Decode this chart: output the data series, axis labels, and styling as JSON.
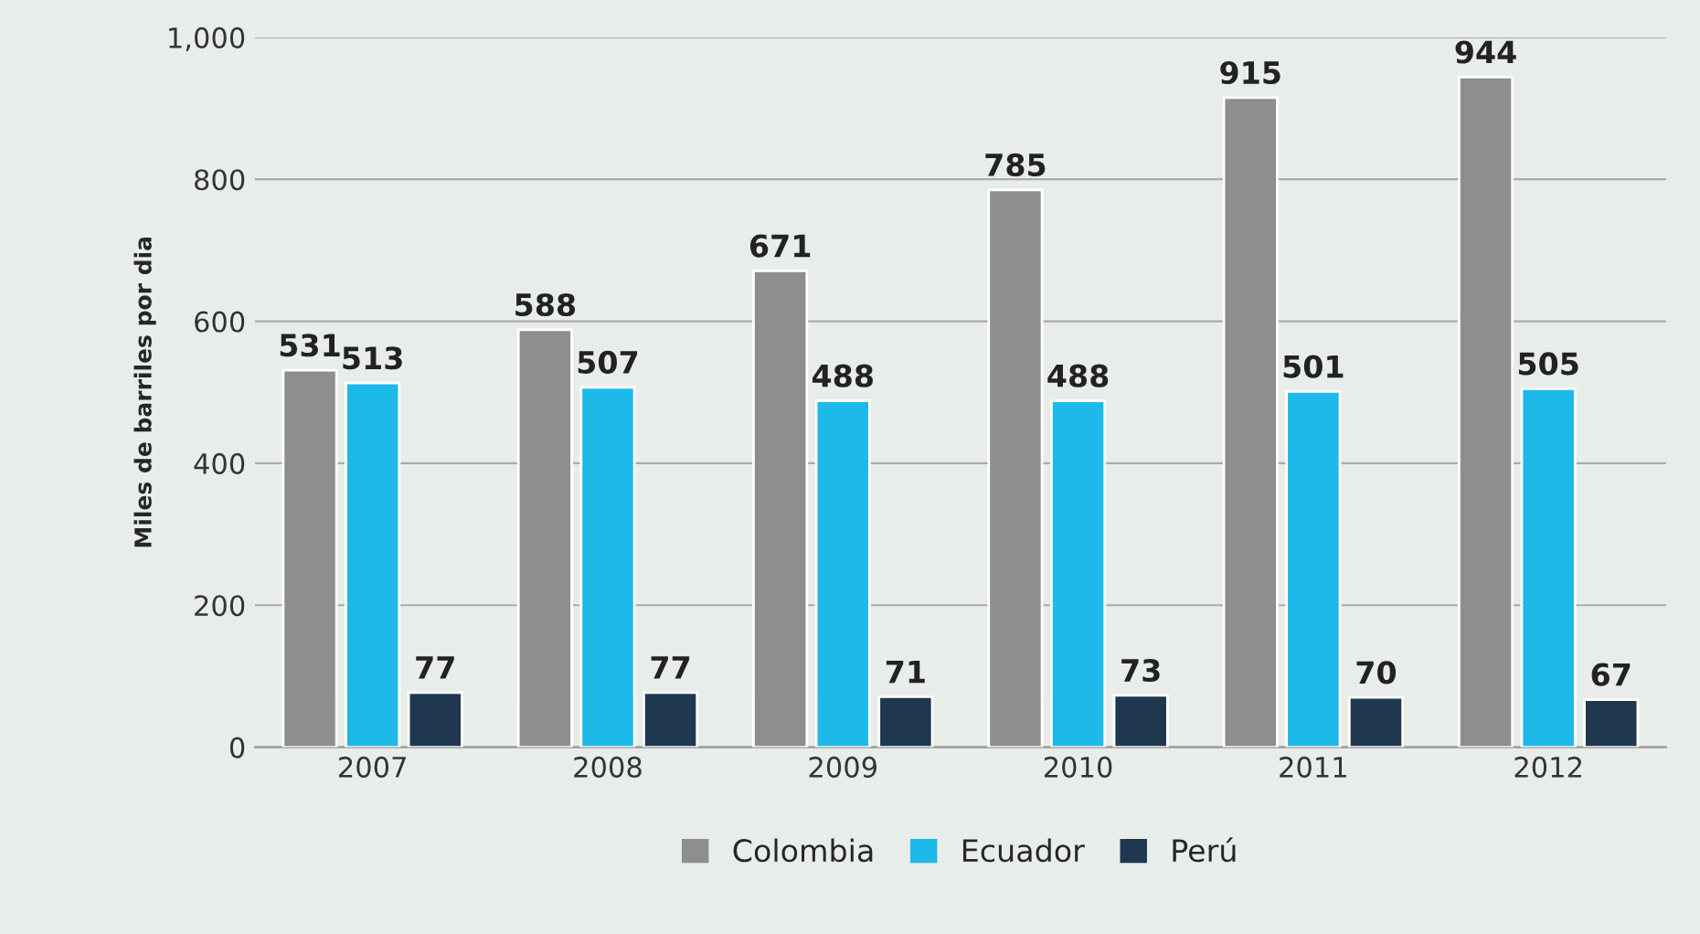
{
  "chart_data": {
    "type": "bar",
    "ylabel": "Miles de barriles por dia",
    "categories": [
      "2007",
      "2008",
      "2009",
      "2010",
      "2011",
      "2012"
    ],
    "series": [
      {
        "name": "Colombia",
        "color": "#8e8e8e",
        "values": [
          531,
          588,
          671,
          785,
          915,
          944
        ]
      },
      {
        "name": "Ecuador",
        "color": "#1cb9e9",
        "values": [
          513,
          507,
          488,
          488,
          501,
          505
        ]
      },
      {
        "name": "Perú",
        "color": "#1f3850",
        "values": [
          77,
          77,
          71,
          73,
          70,
          67
        ]
      }
    ],
    "ylim": [
      0,
      1000
    ],
    "yticks": [
      0,
      200,
      400,
      600,
      800,
      {
        "value": 1000,
        "label": "1,000"
      }
    ],
    "grid": "y",
    "legend": "bottom",
    "data_labels": true
  }
}
